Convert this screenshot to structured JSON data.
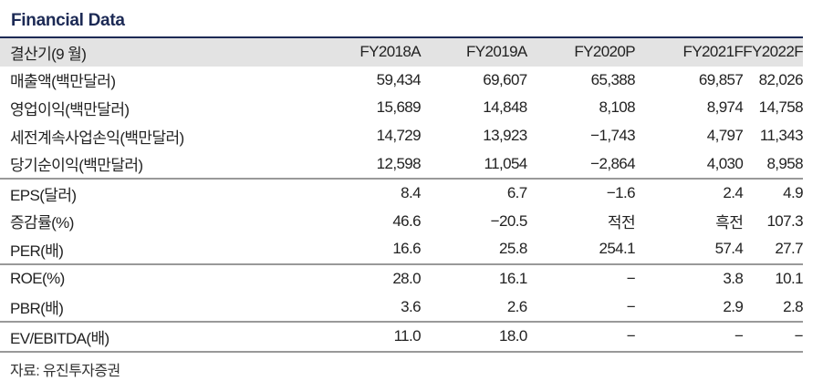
{
  "title": "Financial Data",
  "header": [
    "결산기(9 월)",
    "FY2018A",
    "FY2019A",
    "FY2020P",
    "FY2021F",
    "FY2022F"
  ],
  "rows": [
    [
      "매출액(백만달러)",
      "59,434",
      "69,607",
      "65,388",
      "69,857",
      "82,026"
    ],
    [
      "영업이익(백만달러)",
      "15,689",
      "14,848",
      "8,108",
      "8,974",
      "14,758"
    ],
    [
      "세전계속사업손익(백만달러)",
      "14,729",
      "13,923",
      "−1,743",
      "4,797",
      "11,343"
    ],
    [
      "당기순이익(백만달러)",
      "12,598",
      "11,054",
      "−2,864",
      "4,030",
      "8,958"
    ],
    [
      "EPS(달러)",
      "8.4",
      "6.7",
      "−1.6",
      "2.4",
      "4.9"
    ],
    [
      "증감률(%)",
      "46.6",
      "−20.5",
      "적전",
      "흑전",
      "107.3"
    ],
    [
      "PER(배)",
      "16.6",
      "25.8",
      "254.1",
      "57.4",
      "27.7"
    ],
    [
      "ROE(%)",
      "28.0",
      "16.1",
      "−",
      "3.8",
      "10.1"
    ],
    [
      "PBR(배)",
      "3.6",
      "2.6",
      "−",
      "2.9",
      "2.8"
    ],
    [
      "EV/EBITDA(배)",
      "11.0",
      "18.0",
      "−",
      "−",
      "−"
    ]
  ],
  "source": "자료: 유진투자증권"
}
